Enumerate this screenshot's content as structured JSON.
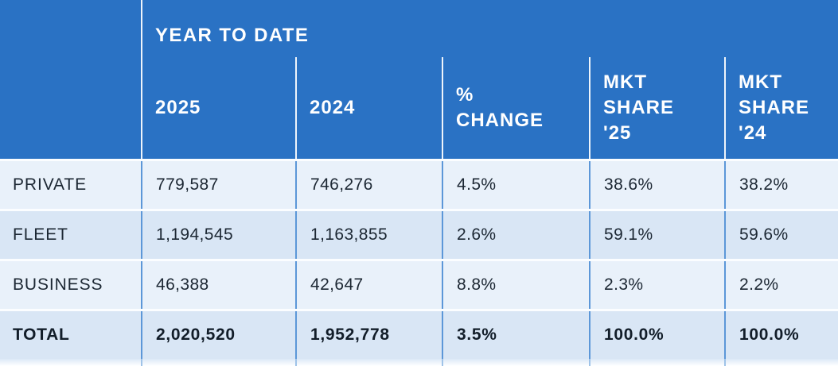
{
  "chart_data": {
    "type": "table",
    "title": "YEAR TO DATE",
    "columns": [
      "2025",
      "2024",
      "% CHANGE",
      "MKT SHARE '25",
      "MKT SHARE '24"
    ],
    "row_labels": [
      "PRIVATE",
      "FLEET",
      "BUSINESS",
      "TOTAL"
    ],
    "rows": [
      [
        "PRIVATE",
        "779,587",
        "746,276",
        "4.5%",
        "38.6%",
        "38.2%"
      ],
      [
        "FLEET",
        "1,194,545",
        "1,163,855",
        "2.6%",
        "59.1%",
        "59.6%"
      ],
      [
        "BUSINESS",
        "46,388",
        "42,647",
        "8.8%",
        "2.3%",
        "2.2%"
      ],
      [
        "TOTAL",
        "2,020,520",
        "1,952,778",
        "3.5%",
        "100.0%",
        "100.0%"
      ]
    ],
    "layout": {
      "legend": "none",
      "grid": "vertical column dividers, alternating row shading",
      "total_row_bold": true
    },
    "colors": {
      "header_blue": "#2a72c4",
      "header_text": "#ffffff",
      "header_divider": "#eef4fb",
      "row_light": "#e9f1fa",
      "row_dark": "#d9e6f5",
      "data_divider_blue": "#5c97d8",
      "text_dark": "#1c2733"
    }
  }
}
